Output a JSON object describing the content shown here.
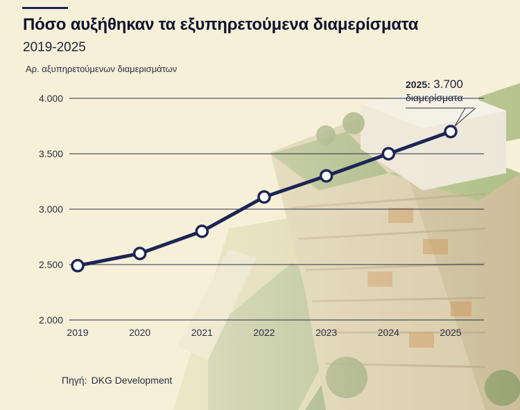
{
  "header": {
    "title": "Πόσο αυξήθηκαν τα εξυπηρετούμενα διαμερίσματα",
    "subtitle": "2019-2025",
    "y_axis_label": "Αρ. αξυπηρετούμενων διαμερισμάτων"
  },
  "annotation": {
    "year": "2025:",
    "value": "3.700",
    "unit": "διαμερίσματα"
  },
  "source": {
    "label": "Πηγή:",
    "name": "DKG Development"
  },
  "colors": {
    "line": "#1c2555",
    "marker_fill": "#ffffff",
    "grid": "#2a2d44",
    "background": "#f6f0d8"
  },
  "chart_data": {
    "type": "line",
    "categories": [
      "2019",
      "2020",
      "2021",
      "2022",
      "2023",
      "2024",
      "2025"
    ],
    "series": [
      {
        "values": [
          2490,
          2600,
          2800,
          3110,
          3300,
          3500,
          3700
        ]
      }
    ],
    "ylim": [
      2000,
      4000
    ],
    "y_ticks": [
      4000,
      3500,
      3000,
      2500,
      2000
    ],
    "y_tick_labels": [
      "4.000",
      "3.500",
      "3.000",
      "2.500",
      "2.000"
    ],
    "grid": true,
    "legend": "none"
  }
}
